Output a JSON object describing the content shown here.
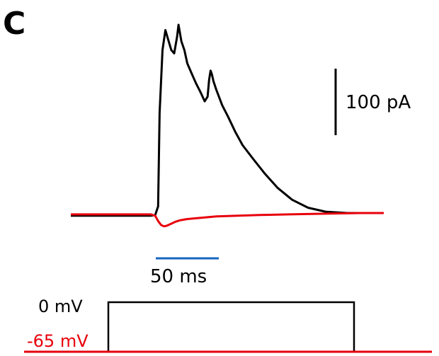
{
  "panel_label": "C",
  "colors": {
    "depolarized": "#000000",
    "resting": "#e8000b",
    "time_scale_bar": "#1565c0"
  },
  "chart_data": {
    "type": "line",
    "title": "",
    "xlabel": "",
    "ylabel": "",
    "x_unit": "ms",
    "y_unit": "pA",
    "xlim": [
      0,
      215
    ],
    "ylim": [
      -30,
      290
    ],
    "stimulus_onset_ms": 60,
    "series": [
      {
        "color": "#000000",
        "holding_label": "0 mV",
        "x": [
          0,
          55,
          58,
          60,
          61,
          63,
          65,
          67,
          69,
          71,
          73,
          74,
          76,
          78,
          80,
          83,
          86,
          89,
          92,
          94,
          95,
          96,
          97,
          98,
          100,
          104,
          108,
          113,
          118,
          125,
          133,
          142,
          152,
          163,
          175,
          190,
          200,
          215
        ],
        "y": [
          -4,
          -4,
          -3,
          10,
          150,
          245,
          275,
          260,
          245,
          240,
          265,
          283,
          258,
          245,
          225,
          210,
          195,
          182,
          168,
          175,
          200,
          214,
          208,
          198,
          185,
          162,
          145,
          122,
          102,
          82,
          60,
          38,
          20,
          8,
          2,
          0,
          0,
          0
        ]
      },
      {
        "color": "#e8000b",
        "holding_label": "-65 mV",
        "x": [
          0,
          55,
          58,
          60,
          62,
          64,
          66,
          68,
          70,
          72,
          75,
          80,
          90,
          100,
          115,
          130,
          150,
          175,
          200,
          215
        ],
        "y": [
          -2,
          -2,
          -4,
          -12,
          -18,
          -20,
          -19,
          -17,
          -15,
          -13,
          -11,
          -9,
          -7,
          -5,
          -4,
          -3,
          -2,
          -1,
          0,
          0
        ]
      }
    ],
    "scale_bars": {
      "current": "100 pA",
      "time": "50 ms"
    }
  },
  "stimulus": {
    "levels": [
      "0 mV",
      "-65 mV"
    ]
  }
}
